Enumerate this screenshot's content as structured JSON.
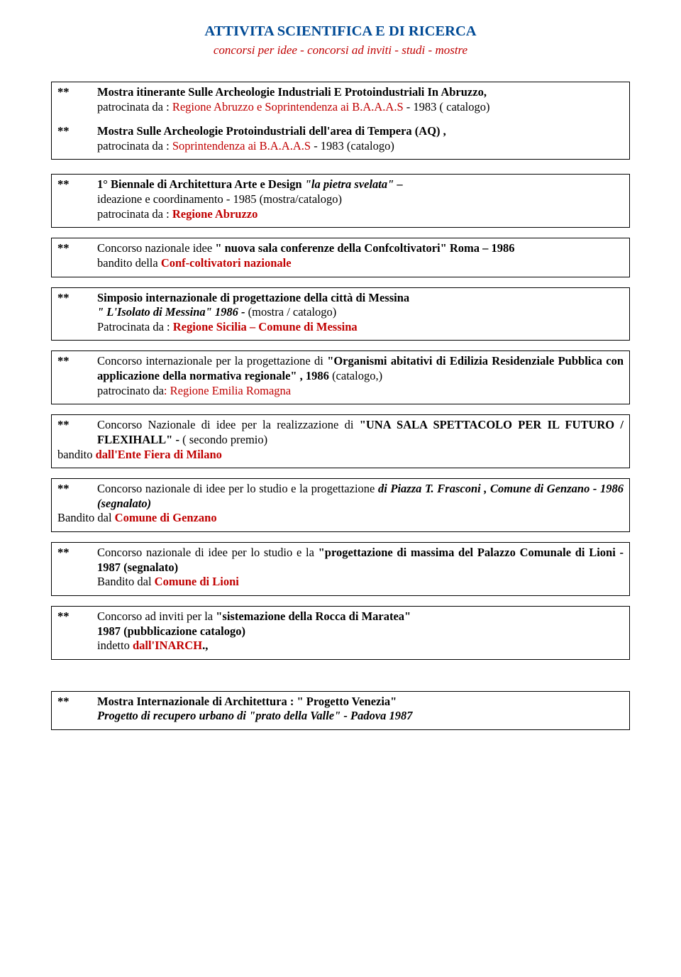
{
  "header": {
    "title": "ATTIVITA  SCIENTIFICA E  DI  RICERCA",
    "subtitle": "concorsi per idee - concorsi ad inviti - studi -   mostre"
  },
  "boxes": [
    {
      "entries": [
        {
          "lines": [
            [
              {
                "t": "Mostra itinerante Sulle Archeologie Industriali E Protoindustriali    In Abruzzo,",
                "cls": "bold"
              }
            ],
            [
              {
                "t": "patrocinata da : "
              },
              {
                "t": "Regione Abruzzo  e Soprintendenza ai B.A.A.A.S",
                "cls": "red"
              },
              {
                "t": "  - 1983  ( catalogo)"
              }
            ]
          ]
        },
        {
          "lines": [
            [
              {
                "t": "Mostra Sulle Archeologie  Protoindustriali  dell'area di Tempera  (AQ) ,",
                "cls": "bold"
              }
            ],
            [
              {
                "t": "patrocinata da : "
              },
              {
                "t": "Soprintendenza ai B.A.A.A.S",
                "cls": "red"
              },
              {
                "t": "  - 1983  (catalogo)"
              }
            ]
          ]
        }
      ]
    },
    {
      "sp": true,
      "entries": [
        {
          "lines": [
            [
              {
                "t": "1° Biennale di Architettura Arte e Design ",
                "cls": "bold"
              },
              {
                "t": " \"la pietra svelata\"",
                "cls": "boldit"
              },
              {
                "t": " – ",
                "cls": "bold"
              }
            ],
            [
              {
                "t": "ideazione e coordinamento - 1985  (mostra/catalogo)"
              }
            ],
            [
              {
                "t": " patrocinata da :  "
              },
              {
                "t": "Regione Abruzzo",
                "cls": "bold red"
              }
            ]
          ]
        }
      ]
    },
    {
      "entries": [
        {
          "lines": [
            [
              {
                "t": "Concorso nazionale idee   "
              },
              {
                "t": "\" nuova sala conferenze della Confcoltivatori\"   Roma – 1986",
                "cls": "bold"
              }
            ],
            [
              {
                "t": " bandito  della "
              },
              {
                "t": "Conf-coltivatori nazionale",
                "cls": "bold red"
              }
            ]
          ]
        }
      ]
    },
    {
      "entries": [
        {
          "lines": [
            [
              {
                "t": "Simposio internazionale  di progettazione  della città di Messina",
                "cls": "bold"
              }
            ],
            [
              {
                "t": "\" L'Isolato di Messina\"  1986 - ",
                "cls": "boldit"
              },
              {
                "t": "(mostra / catalogo)"
              }
            ],
            [
              {
                "t": "Patrocinata da : "
              },
              {
                "t": "Regione Sicilia – Comune di Messina",
                "cls": "bold red"
              }
            ]
          ]
        }
      ]
    },
    {
      "entries": [
        {
          "lines": [
            [
              {
                "t": "Concorso  internazionale    per  la  progettazione    di  "
              },
              {
                "t": "\"Organismi  abitativi  di  Edilizia Residenziale Pubblica con applicazione della normativa regionale\" ,  1986",
                "cls": "bold"
              },
              {
                "t": "  (catalogo,)"
              }
            ],
            [
              {
                "t": "patrocinato da"
              },
              {
                "t": ":  Regione Emilia Romagna",
                "cls": "red"
              }
            ]
          ]
        }
      ]
    },
    {
      "entries": [
        {
          "lines": [
            [
              {
                "t": "Concorso Nazionale  di idee per  la realizzazione di "
              },
              {
                "t": "\"UNA SALA    SPETTACOLO PER    IL  FUTURO / FLEXIHALL\"  - ",
                "cls": "bold"
              },
              {
                "t": "( secondo premio)"
              }
            ],
            [
              {
                "t": "bandito "
              },
              {
                "t": "dall'Ente  Fiera di Milano",
                "cls": "bold red"
              }
            ]
          ],
          "unindent_last": true
        }
      ]
    },
    {
      "entries": [
        {
          "lines": [
            [
              {
                "t": "Concorso  nazionale  di  idee    per  lo  studio  e  la  progettazione  "
              },
              {
                "t": "di    Piazza  T.  Frasconi  , Comune di Genzano  - 1986 (segnalato)",
                "cls": "boldit"
              }
            ],
            [
              {
                "t": " Bandito dal "
              },
              {
                "t": "Comune di Genzano",
                "cls": "bold red"
              }
            ]
          ],
          "unindent_last": true
        }
      ]
    },
    {
      "entries": [
        {
          "lines": [
            [
              {
                "t": "Concorso  nazionale  di  idee    per  lo  studio  e  la  "
              },
              {
                "t": "\"progettazione  di  massima  del  Palazzo Comunale di Lioni - 1987 (segnalato)",
                "cls": "bold"
              }
            ],
            [
              {
                "t": " Bandito dal "
              },
              {
                "t": "Comune di Lioni",
                "cls": "bold red"
              }
            ]
          ]
        }
      ]
    },
    {
      "entries": [
        {
          "lines": [
            [
              {
                "t": "Concorso ad inviti  per la "
              },
              {
                "t": "\"sistemazione della Rocca di  Maratea\"",
                "cls": "bold"
              }
            ],
            [
              {
                "t": " 1987 (pubblicazione catalogo)",
                "cls": "bold"
              }
            ],
            [
              {
                "t": " indetto "
              },
              {
                "t": "dall'INARCH",
                "cls": "bold red"
              },
              {
                "t": ".,",
                "cls": "bold"
              }
            ]
          ]
        }
      ]
    },
    {
      "last": true,
      "entries": [
        {
          "lines": [
            [
              {
                "t": "Mostra Internazionale  di Architettura : \" Progetto      Venezia\"",
                "cls": "bold"
              }
            ],
            [
              {
                "t": "Progetto di recupero urbano di \"prato della Valle\" - Padova  1987",
                "cls": "boldit"
              }
            ]
          ]
        }
      ]
    }
  ],
  "stars": "**"
}
